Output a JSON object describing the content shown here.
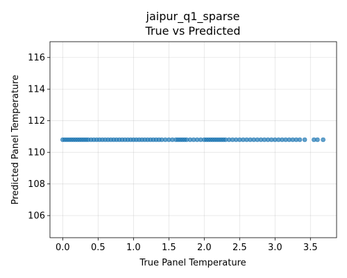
{
  "chart_data": {
    "type": "scatter",
    "title": "jaipur_q1_sparse",
    "subtitle": "True vs Predicted",
    "xlabel": "True Panel Temperature",
    "ylabel": "Predicted Panel Temperature",
    "xlim": [
      -0.18,
      3.87
    ],
    "ylim": [
      104.6,
      117.0
    ],
    "xticks": [
      0.0,
      0.5,
      1.0,
      1.5,
      2.0,
      2.5,
      3.0,
      3.5
    ],
    "xtick_labels": [
      "0.0",
      "0.5",
      "1.0",
      "1.5",
      "2.0",
      "2.5",
      "3.0",
      "3.5"
    ],
    "yticks": [
      106,
      108,
      110,
      112,
      114,
      116
    ],
    "ytick_labels": [
      "106",
      "108",
      "110",
      "112",
      "114",
      "116"
    ],
    "grid": true,
    "series": [
      {
        "color": "#1f77b4",
        "x": [
          0.0,
          0.03,
          0.06,
          0.09,
          0.12,
          0.15,
          0.18,
          0.21,
          0.24,
          0.27,
          0.3,
          0.33,
          0.36,
          0.4,
          0.44,
          0.48,
          0.52,
          0.56,
          0.6,
          0.64,
          0.68,
          0.72,
          0.76,
          0.8,
          0.84,
          0.88,
          0.92,
          0.96,
          1.0,
          1.04,
          1.08,
          1.12,
          1.16,
          1.2,
          1.24,
          1.28,
          1.32,
          1.36,
          1.4,
          1.45,
          1.5,
          1.55,
          1.6,
          1.63,
          1.66,
          1.69,
          1.72,
          1.75,
          1.8,
          1.85,
          1.9,
          1.95,
          2.0,
          2.03,
          2.06,
          2.09,
          2.12,
          2.15,
          2.18,
          2.21,
          2.24,
          2.27,
          2.3,
          2.35,
          2.4,
          2.45,
          2.5,
          2.55,
          2.6,
          2.65,
          2.7,
          2.75,
          2.8,
          2.85,
          2.9,
          2.95,
          3.0,
          3.05,
          3.1,
          3.15,
          3.2,
          3.25,
          3.3,
          3.35,
          3.42,
          3.55,
          3.6,
          3.68
        ],
        "y": [
          110.8,
          110.8,
          110.8,
          110.8,
          110.8,
          110.8,
          110.8,
          110.8,
          110.8,
          110.8,
          110.8,
          110.8,
          110.8,
          110.8,
          110.8,
          110.8,
          110.8,
          110.8,
          110.8,
          110.8,
          110.8,
          110.8,
          110.8,
          110.8,
          110.8,
          110.8,
          110.8,
          110.8,
          110.8,
          110.8,
          110.8,
          110.8,
          110.8,
          110.8,
          110.8,
          110.8,
          110.8,
          110.8,
          110.8,
          110.8,
          110.8,
          110.8,
          110.8,
          110.8,
          110.8,
          110.8,
          110.8,
          110.8,
          110.8,
          110.8,
          110.8,
          110.8,
          110.8,
          110.8,
          110.8,
          110.8,
          110.8,
          110.8,
          110.8,
          110.8,
          110.8,
          110.8,
          110.8,
          110.8,
          110.8,
          110.8,
          110.8,
          110.8,
          110.8,
          110.8,
          110.8,
          110.8,
          110.8,
          110.8,
          110.8,
          110.8,
          110.8,
          110.8,
          110.8,
          110.8,
          110.8,
          110.8,
          110.8,
          110.8,
          110.8,
          110.8,
          110.8,
          110.8
        ]
      }
    ]
  }
}
